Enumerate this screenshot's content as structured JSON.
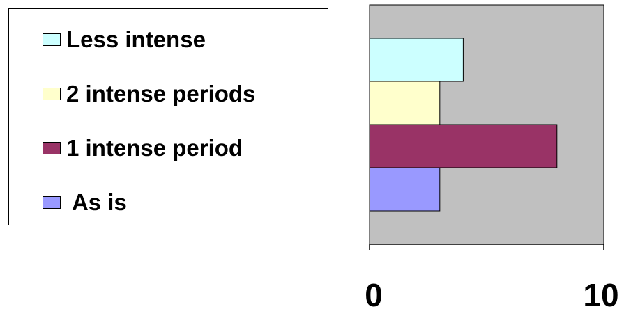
{
  "chart_data": {
    "type": "bar",
    "orientation": "horizontal",
    "categories": [
      "Less intense",
      "2 intense periods",
      "1 intense period",
      "As is"
    ],
    "series": [
      {
        "category": "Less intense",
        "value": 4.0,
        "color": "#CCFFFF"
      },
      {
        "category": "2 intense periods",
        "value": 3.0,
        "color": "#FFFFCC"
      },
      {
        "category": "1 intense period",
        "value": 8.0,
        "color": "#993366"
      },
      {
        "category": "As is",
        "value": 3.0,
        "color": "#9999FF"
      }
    ],
    "xlim": [
      0,
      10
    ],
    "x_tick_labels": [
      "0",
      "10"
    ],
    "plot_background": "#C0C0C0",
    "grid": false,
    "legend_position": "left"
  },
  "legend": {
    "items": [
      {
        "label": "Less intense",
        "color": "#CCFFFF"
      },
      {
        "label": "2 intense periods",
        "color": "#FFFFCC"
      },
      {
        "label": "1 intense period",
        "color": "#993366"
      },
      {
        "label": " As is",
        "color": "#9999FF"
      }
    ]
  }
}
